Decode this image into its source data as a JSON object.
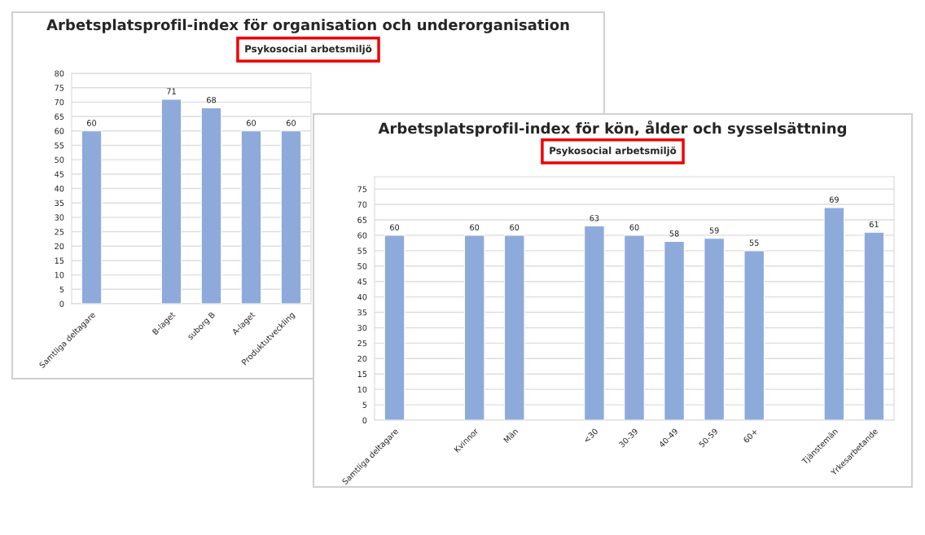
{
  "chart_data": [
    {
      "type": "bar",
      "title": "Arbetsplatsprofil-index för organisation och underorganisation",
      "subtitle": "Psykosocial arbetsmiljö",
      "categories": [
        "Samtliga deltagare",
        null,
        "B-laget",
        "suborg B",
        "A-laget",
        "Produktutveckling"
      ],
      "values": [
        60,
        null,
        71,
        68,
        60,
        60
      ],
      "color": "#8eaadb",
      "ylim": [
        0,
        80
      ],
      "yticks": [
        0,
        5,
        10,
        15,
        20,
        25,
        30,
        35,
        40,
        45,
        50,
        55,
        60,
        65,
        70,
        75,
        80
      ],
      "grid": "y",
      "data_labels": true
    },
    {
      "type": "bar",
      "title": "Arbetsplatsprofil-index för kön, ålder och sysselsättning",
      "subtitle": "Psykosocial arbetsmiljö",
      "categories": [
        "Samtliga deltagare",
        null,
        "Kvinnor",
        "Män",
        null,
        "<30",
        "30-39",
        "40-49",
        "50-59",
        "60+",
        null,
        "Tjänstemän",
        "Yrkesarbetande"
      ],
      "values": [
        60,
        null,
        60,
        60,
        null,
        63,
        60,
        58,
        59,
        55,
        null,
        69,
        61
      ],
      "color": "#8eaadb",
      "ylim": [
        0,
        79
      ],
      "yticks": [
        0,
        5,
        10,
        15,
        20,
        25,
        30,
        35,
        40,
        45,
        50,
        55,
        60,
        65,
        70,
        75
      ],
      "grid": "y",
      "data_labels": true
    }
  ]
}
